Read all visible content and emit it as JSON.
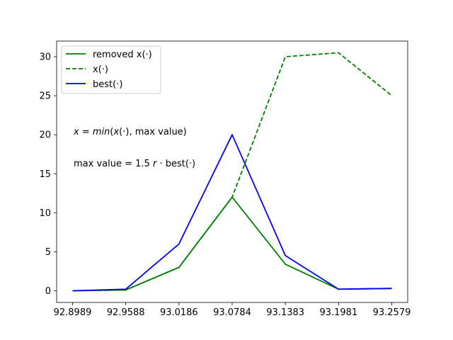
{
  "chart_data": {
    "type": "line",
    "x": [
      92.8989,
      92.9588,
      93.0186,
      93.0784,
      93.1383,
      93.1981,
      93.2579
    ],
    "xticks": [
      "92.8989",
      "92.9588",
      "93.0186",
      "93.0784",
      "93.1383",
      "93.1981",
      "93.2579"
    ],
    "yticks": [
      "0",
      "5",
      "10",
      "15",
      "20",
      "25",
      "30"
    ],
    "ylim": [
      -1.5,
      32
    ],
    "grid": false,
    "legend_position": "upper-left",
    "series": [
      {
        "name": "removed x(·)",
        "color": "#008000",
        "style": "solid",
        "values": [
          0.0,
          0.1,
          3.0,
          12.0,
          3.4,
          0.2,
          0.3
        ]
      },
      {
        "name": "x(·)",
        "color": "#008000",
        "style": "dashed",
        "values": [
          0.0,
          0.1,
          3.0,
          12.0,
          30.0,
          30.5,
          25.0
        ]
      },
      {
        "name": "best(·)",
        "color": "#0000ff",
        "style": "solid",
        "values": [
          0.0,
          0.2,
          6.0,
          20.0,
          4.5,
          0.2,
          0.3
        ]
      }
    ],
    "annotations": [
      {
        "id": "ann1",
        "text": "x = min(x(·), max value)",
        "x": 92.8989,
        "y": 20.0
      },
      {
        "id": "ann2",
        "text": "max value = 1.5 r · best(·)",
        "x": 92.8989,
        "y": 16.0
      }
    ]
  }
}
